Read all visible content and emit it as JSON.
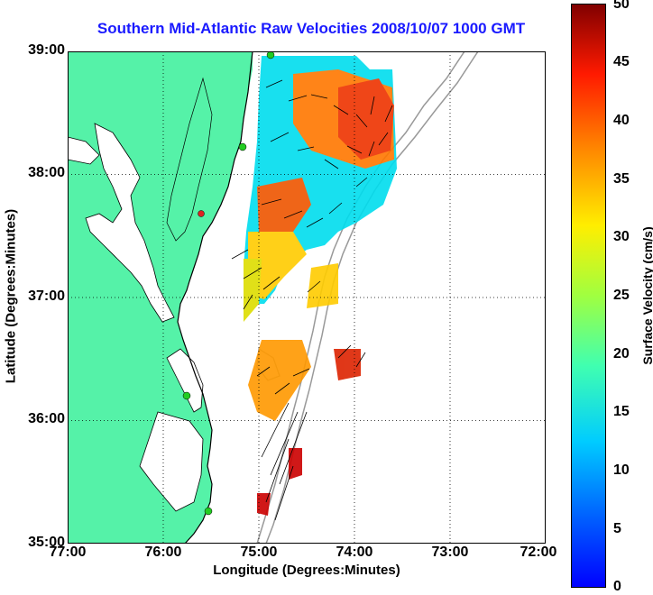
{
  "title": "Southern Mid-Atlantic Raw Velocities 2008/10/07 1000 GMT",
  "x_axis": {
    "label": "Longitude (Degrees:Minutes)",
    "ticks": [
      "77:00",
      "76:00",
      "75:00",
      "74:00",
      "73:00",
      "72:00"
    ]
  },
  "y_axis": {
    "label": "Latitude (Degrees:Minutes)",
    "ticks": [
      "39:00",
      "38:00",
      "37:00",
      "36:00",
      "35:00"
    ]
  },
  "colorbar": {
    "label": "Surface Velocity (cm/s)",
    "ticks": [
      "50",
      "45",
      "40",
      "35",
      "30",
      "25",
      "20",
      "15",
      "10",
      "5",
      "0"
    ],
    "range": [
      0,
      50
    ]
  },
  "colors": {
    "title": "#1a1aff",
    "land": "#55f2a8",
    "coastline": "#000000",
    "bathymetry": "#999999",
    "station_marker": "#22cc22",
    "station_marker_alt": "#dd2222"
  }
}
